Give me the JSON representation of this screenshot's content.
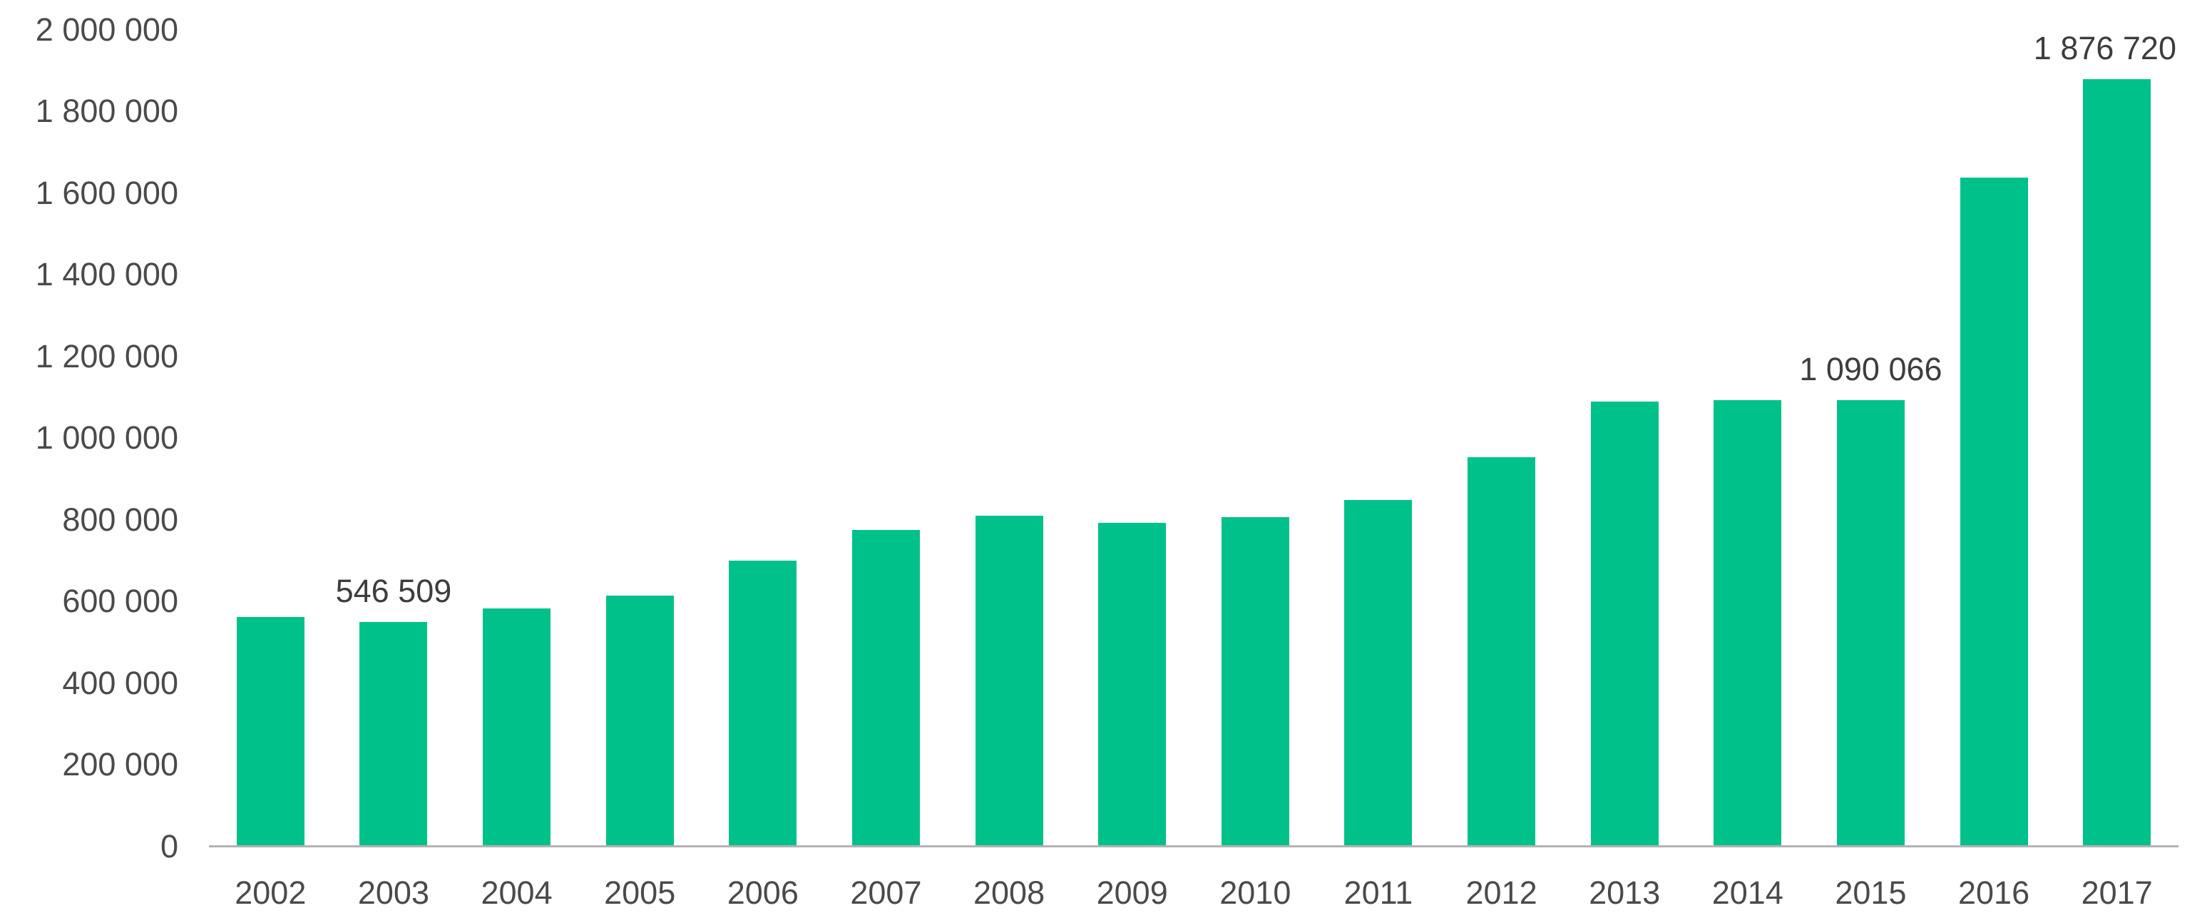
{
  "chart_data": {
    "type": "bar",
    "title": "",
    "xlabel": "",
    "ylabel": "",
    "categories": [
      "2002",
      "2003",
      "2004",
      "2005",
      "2006",
      "2007",
      "2008",
      "2009",
      "2010",
      "2011",
      "2012",
      "2013",
      "2014",
      "2015",
      "2016",
      "2017"
    ],
    "values": [
      560000,
      546509,
      581000,
      611000,
      697000,
      772000,
      807000,
      789000,
      803000,
      845000,
      950000,
      1087000,
      1090000,
      1090066,
      1635000,
      1876720
    ],
    "data_labels": [
      {
        "category": "2003",
        "text": "546 509"
      },
      {
        "category": "2015",
        "text": "1 090 066"
      },
      {
        "category": "2017",
        "text": "1 876 720"
      }
    ],
    "y_axis": {
      "min": 0,
      "max": 2000000,
      "step": 200000,
      "tick_labels": [
        "0",
        "200 000",
        "400 000",
        "600 000",
        "800 000",
        "1 000 000",
        "1 200 000",
        "1 400 000",
        "1 600 000",
        "1 800 000",
        "2 000 000"
      ]
    },
    "grid": false,
    "legend": false,
    "colors": {
      "bar": "#00C18A",
      "axis_line": "#B3B3B3",
      "tick_text": "#4A4A4A",
      "data_label_text": "#3D3D3D",
      "background": "#FFFFFF"
    }
  }
}
